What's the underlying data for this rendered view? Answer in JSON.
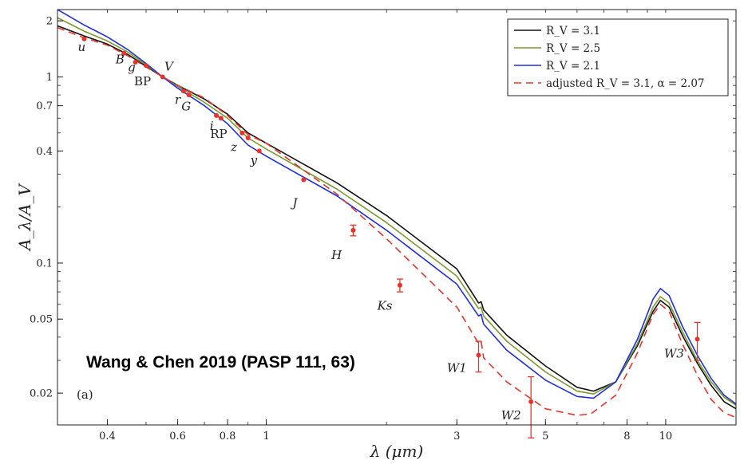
{
  "chart_data": {
    "type": "line",
    "title": "",
    "xlabel": "λ (μm)",
    "ylabel": "A_λ/A_V",
    "xscale": "log",
    "yscale": "log",
    "xlim": [
      0.3,
      15.0
    ],
    "ylim": [
      0.0135,
      2.3
    ],
    "x_ticks": [
      0.4,
      0.6,
      0.8,
      1,
      3,
      5,
      8,
      10
    ],
    "x_tick_labels": [
      "0.4",
      "0.6",
      "0.8",
      "1",
      "3",
      "5",
      "8",
      "10"
    ],
    "y_ticks": [
      0.02,
      0.05,
      0.1,
      0.4,
      0.7,
      1,
      2
    ],
    "y_tick_labels": [
      "0.02",
      "0.05",
      "0.1",
      "0.4",
      "0.7",
      "1",
      "2"
    ],
    "legend_position": "top-right",
    "panel_label": "(a)",
    "annotation": "Wang & Chen 2019 (PASP 111, 63)",
    "series": [
      {
        "name": "R_V = 3.1",
        "color": "#111111",
        "dash": "solid",
        "points": [
          [
            0.3,
            1.88
          ],
          [
            0.35,
            1.66
          ],
          [
            0.4,
            1.5
          ],
          [
            0.45,
            1.32
          ],
          [
            0.5,
            1.14
          ],
          [
            0.55,
            1.0
          ],
          [
            0.6,
            0.9
          ],
          [
            0.7,
            0.76
          ],
          [
            0.8,
            0.63
          ],
          [
            0.9,
            0.5
          ],
          [
            1.0,
            0.44
          ],
          [
            1.5,
            0.27
          ],
          [
            2.0,
            0.18
          ],
          [
            3.0,
            0.093
          ],
          [
            3.4,
            0.061
          ],
          [
            3.45,
            0.062
          ],
          [
            3.5,
            0.056
          ],
          [
            4.0,
            0.041
          ],
          [
            5.0,
            0.028
          ],
          [
            6.0,
            0.0215
          ],
          [
            6.6,
            0.0205
          ],
          [
            7.5,
            0.023
          ],
          [
            8.5,
            0.036
          ],
          [
            9.3,
            0.055
          ],
          [
            9.7,
            0.063
          ],
          [
            10.2,
            0.058
          ],
          [
            11.0,
            0.041
          ],
          [
            12.0,
            0.029
          ],
          [
            13.0,
            0.022
          ],
          [
            14.0,
            0.018
          ],
          [
            15.0,
            0.0165
          ]
        ]
      },
      {
        "name": "R_V = 2.5",
        "color": "#7a9a2e",
        "dash": "solid",
        "points": [
          [
            0.3,
            2.08
          ],
          [
            0.35,
            1.76
          ],
          [
            0.4,
            1.56
          ],
          [
            0.45,
            1.36
          ],
          [
            0.5,
            1.16
          ],
          [
            0.55,
            1.0
          ],
          [
            0.6,
            0.89
          ],
          [
            0.7,
            0.73
          ],
          [
            0.8,
            0.6
          ],
          [
            0.9,
            0.47
          ],
          [
            1.0,
            0.41
          ],
          [
            1.5,
            0.25
          ],
          [
            2.0,
            0.165
          ],
          [
            3.0,
            0.085
          ],
          [
            3.4,
            0.057
          ],
          [
            3.45,
            0.058
          ],
          [
            3.5,
            0.052
          ],
          [
            4.0,
            0.038
          ],
          [
            5.0,
            0.026
          ],
          [
            6.0,
            0.0205
          ],
          [
            6.6,
            0.0198
          ],
          [
            7.5,
            0.023
          ],
          [
            8.5,
            0.037
          ],
          [
            9.3,
            0.058
          ],
          [
            9.7,
            0.066
          ],
          [
            10.2,
            0.061
          ],
          [
            11.0,
            0.043
          ],
          [
            12.0,
            0.03
          ],
          [
            13.0,
            0.023
          ],
          [
            14.0,
            0.019
          ],
          [
            15.0,
            0.0172
          ]
        ]
      },
      {
        "name": "R_V = 2.1",
        "color": "#1f2fe0",
        "dash": "solid",
        "points": [
          [
            0.3,
            2.3
          ],
          [
            0.35,
            1.9
          ],
          [
            0.4,
            1.64
          ],
          [
            0.45,
            1.4
          ],
          [
            0.5,
            1.18
          ],
          [
            0.55,
            1.0
          ],
          [
            0.6,
            0.87
          ],
          [
            0.7,
            0.7
          ],
          [
            0.8,
            0.56
          ],
          [
            0.9,
            0.43
          ],
          [
            1.0,
            0.375
          ],
          [
            1.5,
            0.23
          ],
          [
            2.0,
            0.15
          ],
          [
            3.0,
            0.077
          ],
          [
            3.4,
            0.052
          ],
          [
            3.45,
            0.053
          ],
          [
            3.5,
            0.047
          ],
          [
            4.0,
            0.034
          ],
          [
            5.0,
            0.0235
          ],
          [
            6.0,
            0.0192
          ],
          [
            6.6,
            0.0188
          ],
          [
            7.5,
            0.023
          ],
          [
            8.5,
            0.039
          ],
          [
            9.3,
            0.064
          ],
          [
            9.7,
            0.073
          ],
          [
            10.2,
            0.067
          ],
          [
            11.0,
            0.046
          ],
          [
            12.0,
            0.032
          ],
          [
            13.0,
            0.024
          ],
          [
            14.0,
            0.0195
          ],
          [
            15.0,
            0.0175
          ]
        ]
      },
      {
        "name": "adjusted R_V = 3.1, α = 2.07",
        "color": "#e8332a",
        "dash": "dashed",
        "points": [
          [
            0.3,
            1.84
          ],
          [
            0.35,
            1.62
          ],
          [
            0.4,
            1.48
          ],
          [
            0.45,
            1.3
          ],
          [
            0.5,
            1.13
          ],
          [
            0.55,
            1.0
          ],
          [
            0.6,
            0.9
          ],
          [
            0.7,
            0.77
          ],
          [
            0.8,
            0.62
          ],
          [
            0.9,
            0.49
          ],
          [
            1.0,
            0.44
          ],
          [
            1.5,
            0.235
          ],
          [
            2.0,
            0.135
          ],
          [
            3.0,
            0.058
          ],
          [
            3.4,
            0.037
          ],
          [
            3.45,
            0.038
          ],
          [
            3.5,
            0.031
          ],
          [
            4.0,
            0.023
          ],
          [
            5.0,
            0.0165
          ],
          [
            6.0,
            0.0152
          ],
          [
            6.5,
            0.0155
          ],
          [
            7.5,
            0.0195
          ],
          [
            8.5,
            0.033
          ],
          [
            9.3,
            0.053
          ],
          [
            9.7,
            0.06
          ],
          [
            10.2,
            0.055
          ],
          [
            11.0,
            0.037
          ],
          [
            12.0,
            0.025
          ],
          [
            13.0,
            0.0185
          ],
          [
            14.0,
            0.0157
          ],
          [
            15.0,
            0.0148
          ]
        ]
      }
    ],
    "measurements": {
      "color": "#e8332a",
      "points": [
        {
          "label": "u",
          "x": 0.35,
          "y": 1.6
        },
        {
          "label": "B",
          "x": 0.44,
          "y": 1.34
        },
        {
          "label": "g",
          "x": 0.47,
          "y": 1.2
        },
        {
          "label": "BP",
          "x": 0.5,
          "y": 1.15
        },
        {
          "label": "V",
          "x": 0.55,
          "y": 1.0
        },
        {
          "label": "r",
          "x": 0.62,
          "y": 0.84
        },
        {
          "label": "G",
          "x": 0.64,
          "y": 0.8
        },
        {
          "label": "i",
          "x": 0.75,
          "y": 0.62
        },
        {
          "label": "RP",
          "x": 0.77,
          "y": 0.6
        },
        {
          "label": "z",
          "x": 0.87,
          "y": 0.5
        },
        {
          "label": "z",
          "x": 0.9,
          "y": 0.47
        },
        {
          "label": "y",
          "x": 0.96,
          "y": 0.4
        },
        {
          "label": "J",
          "x": 1.24,
          "y": 0.28
        },
        {
          "label": "H",
          "x": 1.65,
          "y": 0.15,
          "err": 0.01
        },
        {
          "label": "Ks",
          "x": 2.16,
          "y": 0.076,
          "err": 0.006
        },
        {
          "label": "W1",
          "x": 3.4,
          "y": 0.032,
          "err": 0.006
        },
        {
          "label": "W2",
          "x": 4.6,
          "y": 0.018,
          "err": 0.0065
        },
        {
          "label": "W3",
          "x": 12.0,
          "y": 0.039,
          "err": 0.009
        }
      ],
      "band_labels": [
        {
          "text": "u",
          "x": 0.345,
          "y": 1.38,
          "italic": true
        },
        {
          "text": "B",
          "x": 0.43,
          "y": 1.18,
          "italic": true
        },
        {
          "text": "g",
          "x": 0.46,
          "y": 1.07,
          "italic": true
        },
        {
          "text": "BP",
          "x": 0.49,
          "y": 0.9,
          "italic": false
        },
        {
          "text": "V",
          "x": 0.57,
          "y": 1.08,
          "italic": true
        },
        {
          "text": "r",
          "x": 0.6,
          "y": 0.72,
          "italic": true
        },
        {
          "text": "G",
          "x": 0.63,
          "y": 0.66,
          "italic": true
        },
        {
          "text": "i",
          "x": 0.73,
          "y": 0.52,
          "italic": true
        },
        {
          "text": "RP",
          "x": 0.76,
          "y": 0.47,
          "italic": false
        },
        {
          "text": "z",
          "x": 0.83,
          "y": 0.4,
          "italic": true
        },
        {
          "text": "y",
          "x": 0.93,
          "y": 0.34,
          "italic": true
        },
        {
          "text": "J",
          "x": 1.18,
          "y": 0.2,
          "italic": true
        },
        {
          "text": "H",
          "x": 1.5,
          "y": 0.105,
          "italic": true
        },
        {
          "text": "Ks",
          "x": 1.98,
          "y": 0.056,
          "italic": true
        },
        {
          "text": "W1",
          "x": 3.0,
          "y": 0.026,
          "italic": true
        },
        {
          "text": "W2",
          "x": 4.1,
          "y": 0.0145,
          "italic": true
        },
        {
          "text": "W3",
          "x": 10.5,
          "y": 0.031,
          "italic": true
        }
      ]
    }
  }
}
